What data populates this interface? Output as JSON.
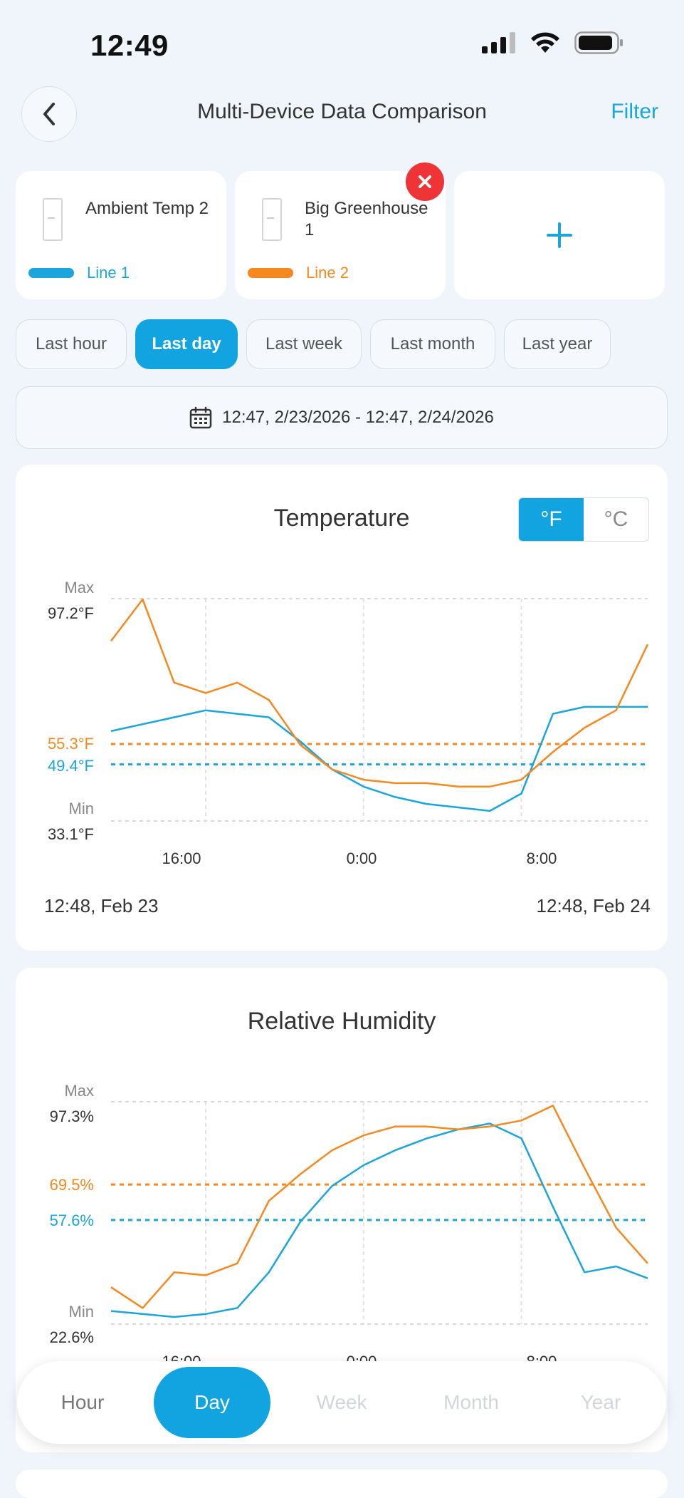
{
  "status_bar": {
    "time": "12:49"
  },
  "header": {
    "title": "Multi-Device Data Comparison",
    "filter_label": "Filter"
  },
  "devices": [
    {
      "name": "Ambient Temp 2",
      "line_label": "Line 1",
      "color": "#1aa5dc"
    },
    {
      "name": "Big Greenhouse 1",
      "line_label": "Line 2",
      "color": "#f5891f"
    }
  ],
  "add_device_label": "+",
  "time_ranges": [
    {
      "label": "Last hour",
      "active": false
    },
    {
      "label": "Last day",
      "active": true
    },
    {
      "label": "Last week",
      "active": false
    },
    {
      "label": "Last month",
      "active": false
    },
    {
      "label": "Last year",
      "active": false
    }
  ],
  "date_range_text": "12:47,  2/23/2026 - 12:47,  2/24/2026",
  "temperature_chart": {
    "title": "Temperature",
    "units": [
      {
        "label": "°F",
        "active": true
      },
      {
        "label": "°C",
        "active": false
      }
    ],
    "max_label": "Max",
    "max_value": "97.2°F",
    "min_label": "Min",
    "min_value": "33.1°F",
    "avg_line2_label": "55.3°F",
    "avg_line1_label": "49.4°F",
    "x_ticks": [
      "16:00",
      "0:00",
      "8:00"
    ],
    "start_label": "12:48,  Feb 23",
    "end_label": "12:48,  Feb 24"
  },
  "humidity_chart": {
    "title": "Relative Humidity",
    "max_label": "Max",
    "max_value": "97.3%",
    "min_label": "Min",
    "min_value": "22.6%",
    "avg_line2_label": "69.5%",
    "avg_line1_label": "57.6%",
    "x_ticks": [
      "16:00",
      "0:00",
      "8:00"
    ]
  },
  "bottom_tabs": [
    {
      "label": "Hour",
      "active": false
    },
    {
      "label": "Day",
      "active": true
    },
    {
      "label": "Week",
      "active": false
    },
    {
      "label": "Month",
      "active": false
    },
    {
      "label": "Year",
      "active": false
    }
  ],
  "chart_data": [
    {
      "type": "line",
      "title": "Temperature",
      "xlabel": "",
      "ylabel": "",
      "x": [
        "12:48",
        "14:00",
        "15:00",
        "16:00",
        "17:00",
        "18:00",
        "20:00",
        "22:00",
        "0:00",
        "2:00",
        "4:00",
        "6:00",
        "7:30",
        "8:00",
        "9:00",
        "10:00",
        "11:00",
        "12:48"
      ],
      "xticks": [
        "16:00",
        "0:00",
        "8:00"
      ],
      "ylim": [
        33.1,
        97.2
      ],
      "series": [
        {
          "name": "Line 1",
          "color": "#1aa5dc",
          "values": [
            59,
            61,
            63,
            65,
            64,
            63,
            56,
            48,
            43,
            40,
            38,
            37,
            36,
            41,
            64,
            66,
            66,
            66
          ]
        },
        {
          "name": "Line 2",
          "color": "#f5891f",
          "values": [
            85,
            97,
            73,
            70,
            73,
            68,
            55,
            48,
            45,
            44,
            44,
            43,
            43,
            45,
            53,
            60,
            65,
            84
          ]
        }
      ],
      "reference_lines": [
        {
          "series": "Line 2",
          "label": "55.3°F",
          "value": 55.3
        },
        {
          "series": "Line 1",
          "label": "49.4°F",
          "value": 49.4
        }
      ],
      "grid": true
    },
    {
      "type": "line",
      "title": "Relative Humidity",
      "xlabel": "",
      "ylabel": "",
      "x": [
        "12:48",
        "14:00",
        "15:00",
        "16:00",
        "17:00",
        "18:00",
        "20:00",
        "22:00",
        "0:00",
        "2:00",
        "4:00",
        "6:00",
        "7:30",
        "8:00",
        "9:00",
        "10:00",
        "11:00",
        "12:48"
      ],
      "xticks": [
        "16:00",
        "0:00",
        "8:00"
      ],
      "ylim": [
        22.6,
        97.3
      ],
      "series": [
        {
          "name": "Line 1",
          "color": "#1aa5dc",
          "values": [
            27,
            26,
            25,
            26,
            28,
            40,
            57,
            69,
            76,
            81,
            85,
            88,
            90,
            85,
            62,
            40,
            42,
            38
          ]
        },
        {
          "name": "Line 2",
          "color": "#f5891f",
          "values": [
            35,
            28,
            40,
            39,
            43,
            64,
            73,
            81,
            86,
            89,
            89,
            88,
            89,
            91,
            96,
            75,
            55,
            43
          ]
        }
      ],
      "reference_lines": [
        {
          "series": "Line 2",
          "label": "69.5%",
          "value": 69.5
        },
        {
          "series": "Line 1",
          "label": "57.6%",
          "value": 57.6
        }
      ],
      "grid": true
    }
  ]
}
